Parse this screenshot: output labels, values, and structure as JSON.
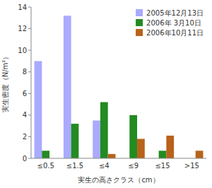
{
  "chart_data": {
    "type": "bar",
    "categories": [
      "≤0.5",
      "≤1.5",
      "≤4",
      "≤9",
      "≤15",
      ">15"
    ],
    "series": [
      {
        "name": "2005年12月13日",
        "color": "#aaaaff",
        "values": [
          9.0,
          13.2,
          3.5,
          0.0,
          0.0,
          0.0
        ]
      },
      {
        "name": "2006年 3月10日",
        "color": "#228b22",
        "values": [
          0.7,
          3.2,
          5.2,
          4.0,
          0.7,
          0.0
        ]
      },
      {
        "name": "2006年10月11日",
        "color": "#b8621a",
        "values": [
          0.0,
          0.0,
          0.4,
          1.8,
          2.1,
          0.7
        ]
      }
    ],
    "ylabel": "実生密度（N/m²）",
    "xlabel": "実生の高さクラス（cm）",
    "ylim": [
      0,
      14
    ],
    "yticks": [
      0,
      2,
      4,
      6,
      8,
      10,
      12,
      14
    ],
    "legend": "upper right",
    "grid": false
  }
}
